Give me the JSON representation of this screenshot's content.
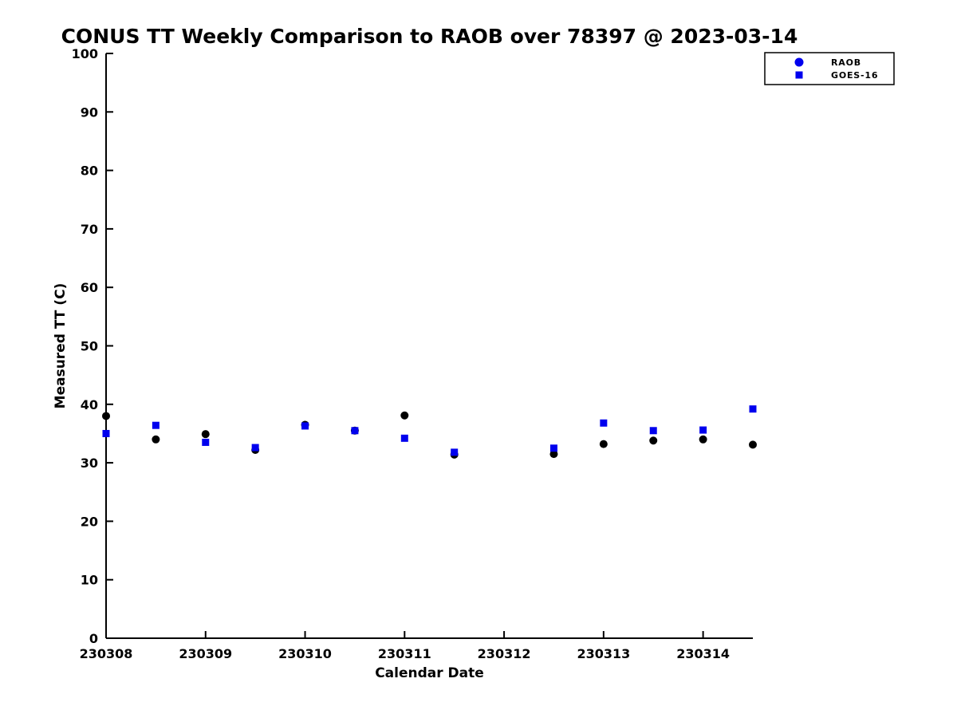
{
  "chart_data": {
    "type": "scatter",
    "title": "CONUS TT Weekly Comparison to RAOB over 78397 @ 2023-03-14",
    "xlabel": "Calendar Date",
    "ylabel": "Measured TT (C)",
    "xlim": [
      230308,
      230314.5
    ],
    "ylim": [
      0,
      100
    ],
    "x_ticks": [
      230308,
      230309,
      230310,
      230311,
      230312,
      230313,
      230314
    ],
    "x_tick_labels": [
      "230308",
      "230309",
      "230310",
      "230311",
      "230312",
      "230313",
      "230314"
    ],
    "y_ticks": [
      0,
      10,
      20,
      30,
      40,
      50,
      60,
      70,
      80,
      90,
      100
    ],
    "y_tick_labels": [
      "0",
      "10",
      "20",
      "30",
      "40",
      "50",
      "60",
      "70",
      "80",
      "90",
      "100"
    ],
    "grid": false,
    "legend_position": "top-right",
    "series": [
      {
        "name": "RAOB",
        "marker": "circle",
        "marker_color": "#000000",
        "legend_marker_color": "#0000ee",
        "x": [
          230308,
          230308.5,
          230309,
          230309.5,
          230310,
          230310.5,
          230311,
          230311.5,
          230312.5,
          230313,
          230313.5,
          230314,
          230314.5
        ],
        "y": [
          38.0,
          34.0,
          34.9,
          32.2,
          36.5,
          35.5,
          38.1,
          31.4,
          31.5,
          33.2,
          33.8,
          34.0,
          33.1
        ]
      },
      {
        "name": "GOES-16",
        "marker": "square",
        "marker_color": "#0000ee",
        "legend_marker_color": "#0000ee",
        "x": [
          230308,
          230308.5,
          230309,
          230309.5,
          230310,
          230310.5,
          230311,
          230311.5,
          230312.5,
          230313,
          230313.5,
          230314,
          230314.5
        ],
        "y": [
          35.0,
          36.4,
          33.5,
          32.6,
          36.3,
          35.5,
          34.2,
          31.8,
          32.5,
          36.8,
          35.5,
          35.6,
          39.2
        ]
      }
    ]
  },
  "colors": {
    "background": "#ffffff",
    "axis": "#000000",
    "blue": "#0000ee",
    "black": "#000000"
  }
}
